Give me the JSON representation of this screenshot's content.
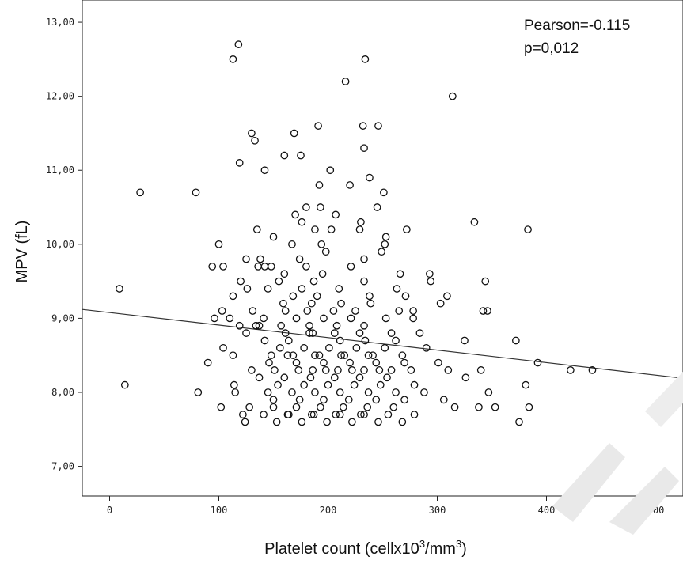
{
  "chart_data": {
    "type": "scatter",
    "xlabel_text": "Platelet count (cellx10",
    "xlabel_sup": "3",
    "xlabel_tail": "/mm",
    "xlabel_sup2": "3",
    "xlabel_end": ")",
    "ylabel": "MPV (fL)",
    "xlim": [
      -25,
      525
    ],
    "ylim": [
      6.6,
      13.3
    ],
    "x_ticks": [
      0,
      100,
      200,
      300,
      400,
      500
    ],
    "x_tick_labels": [
      "0",
      "100",
      "200",
      "300",
      "400",
      "500"
    ],
    "y_ticks": [
      7,
      8,
      9,
      10,
      11,
      12,
      13
    ],
    "y_tick_labels": [
      "7,00",
      "8,00",
      "9,00",
      "10,00",
      "11,00",
      "12,00",
      "13,00"
    ],
    "grid": false,
    "annotations": [
      "Pearson=-0.115",
      "p=0,012"
    ],
    "fit_line": {
      "x": [
        -25,
        525
      ],
      "y": [
        9.12,
        8.19
      ]
    },
    "points": [
      [
        118,
        12.7
      ],
      [
        113,
        12.5
      ],
      [
        234,
        12.5
      ],
      [
        216,
        12.2
      ],
      [
        314,
        12.0
      ],
      [
        191,
        11.6
      ],
      [
        232,
        11.6
      ],
      [
        246,
        11.6
      ],
      [
        130,
        11.5
      ],
      [
        169,
        11.5
      ],
      [
        133,
        11.4
      ],
      [
        233,
        11.3
      ],
      [
        160,
        11.2
      ],
      [
        175,
        11.2
      ],
      [
        119,
        11.1
      ],
      [
        142,
        11.0
      ],
      [
        202,
        11.0
      ],
      [
        238,
        10.9
      ],
      [
        220,
        10.8
      ],
      [
        192,
        10.8
      ],
      [
        28,
        10.7
      ],
      [
        79,
        10.7
      ],
      [
        251,
        10.7
      ],
      [
        180,
        10.5
      ],
      [
        193,
        10.5
      ],
      [
        245,
        10.5
      ],
      [
        170,
        10.4
      ],
      [
        207,
        10.4
      ],
      [
        230,
        10.3
      ],
      [
        176,
        10.3
      ],
      [
        188,
        10.2
      ],
      [
        135,
        10.2
      ],
      [
        203,
        10.2
      ],
      [
        272,
        10.2
      ],
      [
        229,
        10.2
      ],
      [
        334,
        10.3
      ],
      [
        383,
        10.2
      ],
      [
        150,
        10.1
      ],
      [
        167,
        10.0
      ],
      [
        252,
        10.0
      ],
      [
        100,
        10.0
      ],
      [
        194,
        10.0
      ],
      [
        253,
        10.1
      ],
      [
        198,
        9.9
      ],
      [
        249,
        9.9
      ],
      [
        174,
        9.8
      ],
      [
        138,
        9.8
      ],
      [
        125,
        9.8
      ],
      [
        233,
        9.8
      ],
      [
        104,
        9.7
      ],
      [
        136,
        9.7
      ],
      [
        142,
        9.7
      ],
      [
        148,
        9.7
      ],
      [
        180,
        9.7
      ],
      [
        94,
        9.7
      ],
      [
        221,
        9.7
      ],
      [
        266,
        9.6
      ],
      [
        293,
        9.6
      ],
      [
        344,
        9.5
      ],
      [
        160,
        9.6
      ],
      [
        195,
        9.6
      ],
      [
        120,
        9.5
      ],
      [
        155,
        9.5
      ],
      [
        187,
        9.5
      ],
      [
        233,
        9.5
      ],
      [
        294,
        9.5
      ],
      [
        9,
        9.4
      ],
      [
        126,
        9.4
      ],
      [
        145,
        9.4
      ],
      [
        176,
        9.4
      ],
      [
        210,
        9.4
      ],
      [
        263,
        9.4
      ],
      [
        309,
        9.3
      ],
      [
        113,
        9.3
      ],
      [
        168,
        9.3
      ],
      [
        190,
        9.3
      ],
      [
        238,
        9.3
      ],
      [
        271,
        9.3
      ],
      [
        96,
        9.0
      ],
      [
        103,
        9.1
      ],
      [
        131,
        9.1
      ],
      [
        161,
        9.1
      ],
      [
        181,
        9.1
      ],
      [
        205,
        9.1
      ],
      [
        225,
        9.1
      ],
      [
        265,
        9.1
      ],
      [
        278,
        9.1
      ],
      [
        303,
        9.2
      ],
      [
        342,
        9.1
      ],
      [
        346,
        9.1
      ],
      [
        110,
        9.0
      ],
      [
        141,
        9.0
      ],
      [
        171,
        9.0
      ],
      [
        196,
        9.0
      ],
      [
        221,
        9.0
      ],
      [
        253,
        9.0
      ],
      [
        278,
        9.0
      ],
      [
        90,
        8.4
      ],
      [
        119,
        8.9
      ],
      [
        134,
        8.9
      ],
      [
        157,
        8.9
      ],
      [
        183,
        8.9
      ],
      [
        208,
        8.9
      ],
      [
        233,
        8.9
      ],
      [
        258,
        8.8
      ],
      [
        284,
        8.8
      ],
      [
        104,
        8.6
      ],
      [
        125,
        8.8
      ],
      [
        142,
        8.7
      ],
      [
        164,
        8.7
      ],
      [
        186,
        8.8
      ],
      [
        211,
        8.7
      ],
      [
        234,
        8.7
      ],
      [
        262,
        8.7
      ],
      [
        290,
        8.6
      ],
      [
        325,
        8.7
      ],
      [
        372,
        8.7
      ],
      [
        113,
        8.5
      ],
      [
        148,
        8.5
      ],
      [
        168,
        8.5
      ],
      [
        192,
        8.5
      ],
      [
        215,
        8.5
      ],
      [
        241,
        8.5
      ],
      [
        268,
        8.5
      ],
      [
        301,
        8.4
      ],
      [
        392,
        8.4
      ],
      [
        130,
        8.3
      ],
      [
        151,
        8.3
      ],
      [
        173,
        8.3
      ],
      [
        198,
        8.3
      ],
      [
        222,
        8.3
      ],
      [
        247,
        8.3
      ],
      [
        276,
        8.3
      ],
      [
        310,
        8.3
      ],
      [
        340,
        8.3
      ],
      [
        422,
        8.3
      ],
      [
        442,
        8.3
      ],
      [
        14,
        8.1
      ],
      [
        81,
        8.0
      ],
      [
        114,
        8.1
      ],
      [
        137,
        8.2
      ],
      [
        160,
        8.2
      ],
      [
        184,
        8.2
      ],
      [
        206,
        8.2
      ],
      [
        229,
        8.2
      ],
      [
        254,
        8.2
      ],
      [
        279,
        8.1
      ],
      [
        326,
        8.2
      ],
      [
        381,
        8.1
      ],
      [
        115,
        8.0
      ],
      [
        145,
        8.0
      ],
      [
        167,
        8.0
      ],
      [
        188,
        8.0
      ],
      [
        211,
        8.0
      ],
      [
        237,
        8.0
      ],
      [
        262,
        8.0
      ],
      [
        288,
        8.0
      ],
      [
        347,
        8.0
      ],
      [
        102,
        7.8
      ],
      [
        128,
        7.8
      ],
      [
        150,
        7.9
      ],
      [
        174,
        7.9
      ],
      [
        196,
        7.9
      ],
      [
        219,
        7.9
      ],
      [
        244,
        7.9
      ],
      [
        270,
        7.9
      ],
      [
        306,
        7.9
      ],
      [
        338,
        7.8
      ],
      [
        353,
        7.8
      ],
      [
        384,
        7.8
      ],
      [
        122,
        7.7
      ],
      [
        141,
        7.7
      ],
      [
        163,
        7.7
      ],
      [
        185,
        7.7
      ],
      [
        207,
        7.7
      ],
      [
        230,
        7.7
      ],
      [
        255,
        7.7
      ],
      [
        279,
        7.7
      ],
      [
        316,
        7.8
      ],
      [
        124,
        7.6
      ],
      [
        153,
        7.6
      ],
      [
        176,
        7.6
      ],
      [
        199,
        7.6
      ],
      [
        222,
        7.6
      ],
      [
        246,
        7.6
      ],
      [
        268,
        7.6
      ],
      [
        375,
        7.6
      ],
      [
        156,
        8.6
      ],
      [
        178,
        8.6
      ],
      [
        201,
        8.6
      ],
      [
        226,
        8.6
      ],
      [
        252,
        8.6
      ],
      [
        146,
        8.4
      ],
      [
        171,
        8.4
      ],
      [
        196,
        8.4
      ],
      [
        220,
        8.4
      ],
      [
        244,
        8.4
      ],
      [
        270,
        8.4
      ],
      [
        161,
        8.8
      ],
      [
        183,
        8.8
      ],
      [
        206,
        8.8
      ],
      [
        229,
        8.8
      ],
      [
        154,
        8.1
      ],
      [
        178,
        8.1
      ],
      [
        200,
        8.1
      ],
      [
        224,
        8.1
      ],
      [
        248,
        8.1
      ],
      [
        137,
        8.9
      ],
      [
        159,
        9.2
      ],
      [
        185,
        9.2
      ],
      [
        212,
        9.2
      ],
      [
        239,
        9.2
      ],
      [
        150,
        7.8
      ],
      [
        171,
        7.8
      ],
      [
        193,
        7.8
      ],
      [
        214,
        7.8
      ],
      [
        236,
        7.8
      ],
      [
        260,
        7.8
      ],
      [
        164,
        7.7
      ],
      [
        187,
        7.7
      ],
      [
        211,
        7.7
      ],
      [
        233,
        7.7
      ],
      [
        186,
        8.3
      ],
      [
        209,
        8.3
      ],
      [
        233,
        8.3
      ],
      [
        258,
        8.3
      ],
      [
        163,
        8.5
      ],
      [
        188,
        8.5
      ],
      [
        212,
        8.5
      ],
      [
        237,
        8.5
      ]
    ]
  }
}
